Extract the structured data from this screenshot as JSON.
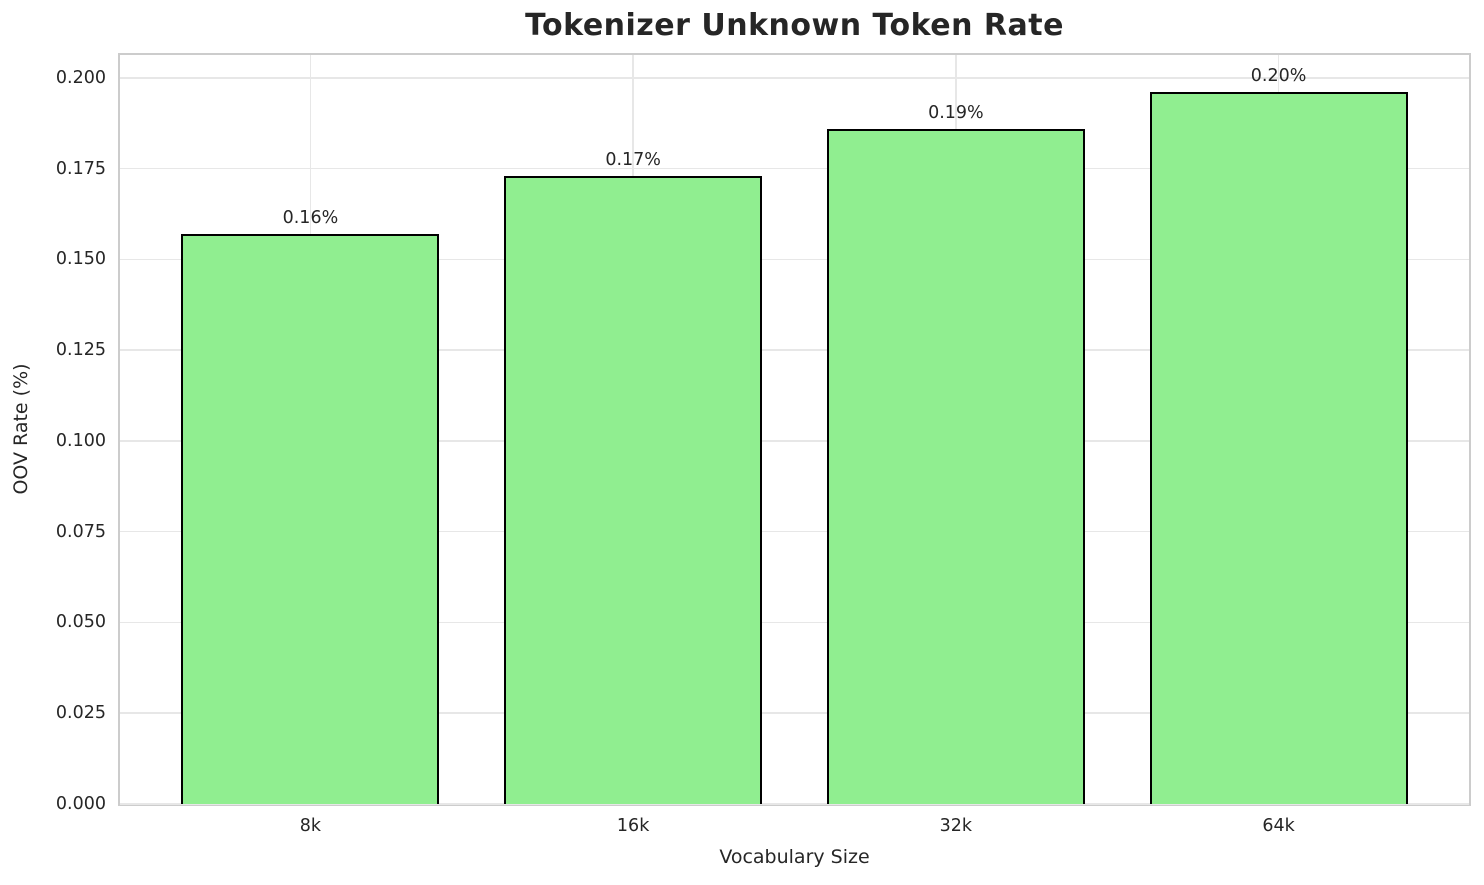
{
  "chart_data": {
    "type": "bar",
    "title": "Tokenizer Unknown Token Rate",
    "xlabel": "Vocabulary Size",
    "ylabel": "OOV Rate (%)",
    "categories": [
      "8k",
      "16k",
      "32k",
      "64k"
    ],
    "values": [
      0.157,
      0.173,
      0.186,
      0.196
    ],
    "bar_labels": [
      "0.16%",
      "0.17%",
      "0.19%",
      "0.20%"
    ],
    "yticks": [
      0.0,
      0.025,
      0.05,
      0.075,
      0.1,
      0.125,
      0.15,
      0.175,
      0.2
    ],
    "ytick_labels": [
      "0.000",
      "0.025",
      "0.050",
      "0.075",
      "0.100",
      "0.125",
      "0.150",
      "0.175",
      "0.200"
    ],
    "ylim": [
      0,
      0.2063
    ],
    "xlim": [
      -0.59,
      3.59
    ],
    "bar_width": 0.8,
    "grid": true,
    "legend": false,
    "colors": {
      "background": "#ffffff",
      "bar_fill": "#90EE90",
      "bar_edge": "#000000",
      "grid": "#e7e7e7",
      "spine": "#cccccc",
      "text": "#262626"
    }
  }
}
